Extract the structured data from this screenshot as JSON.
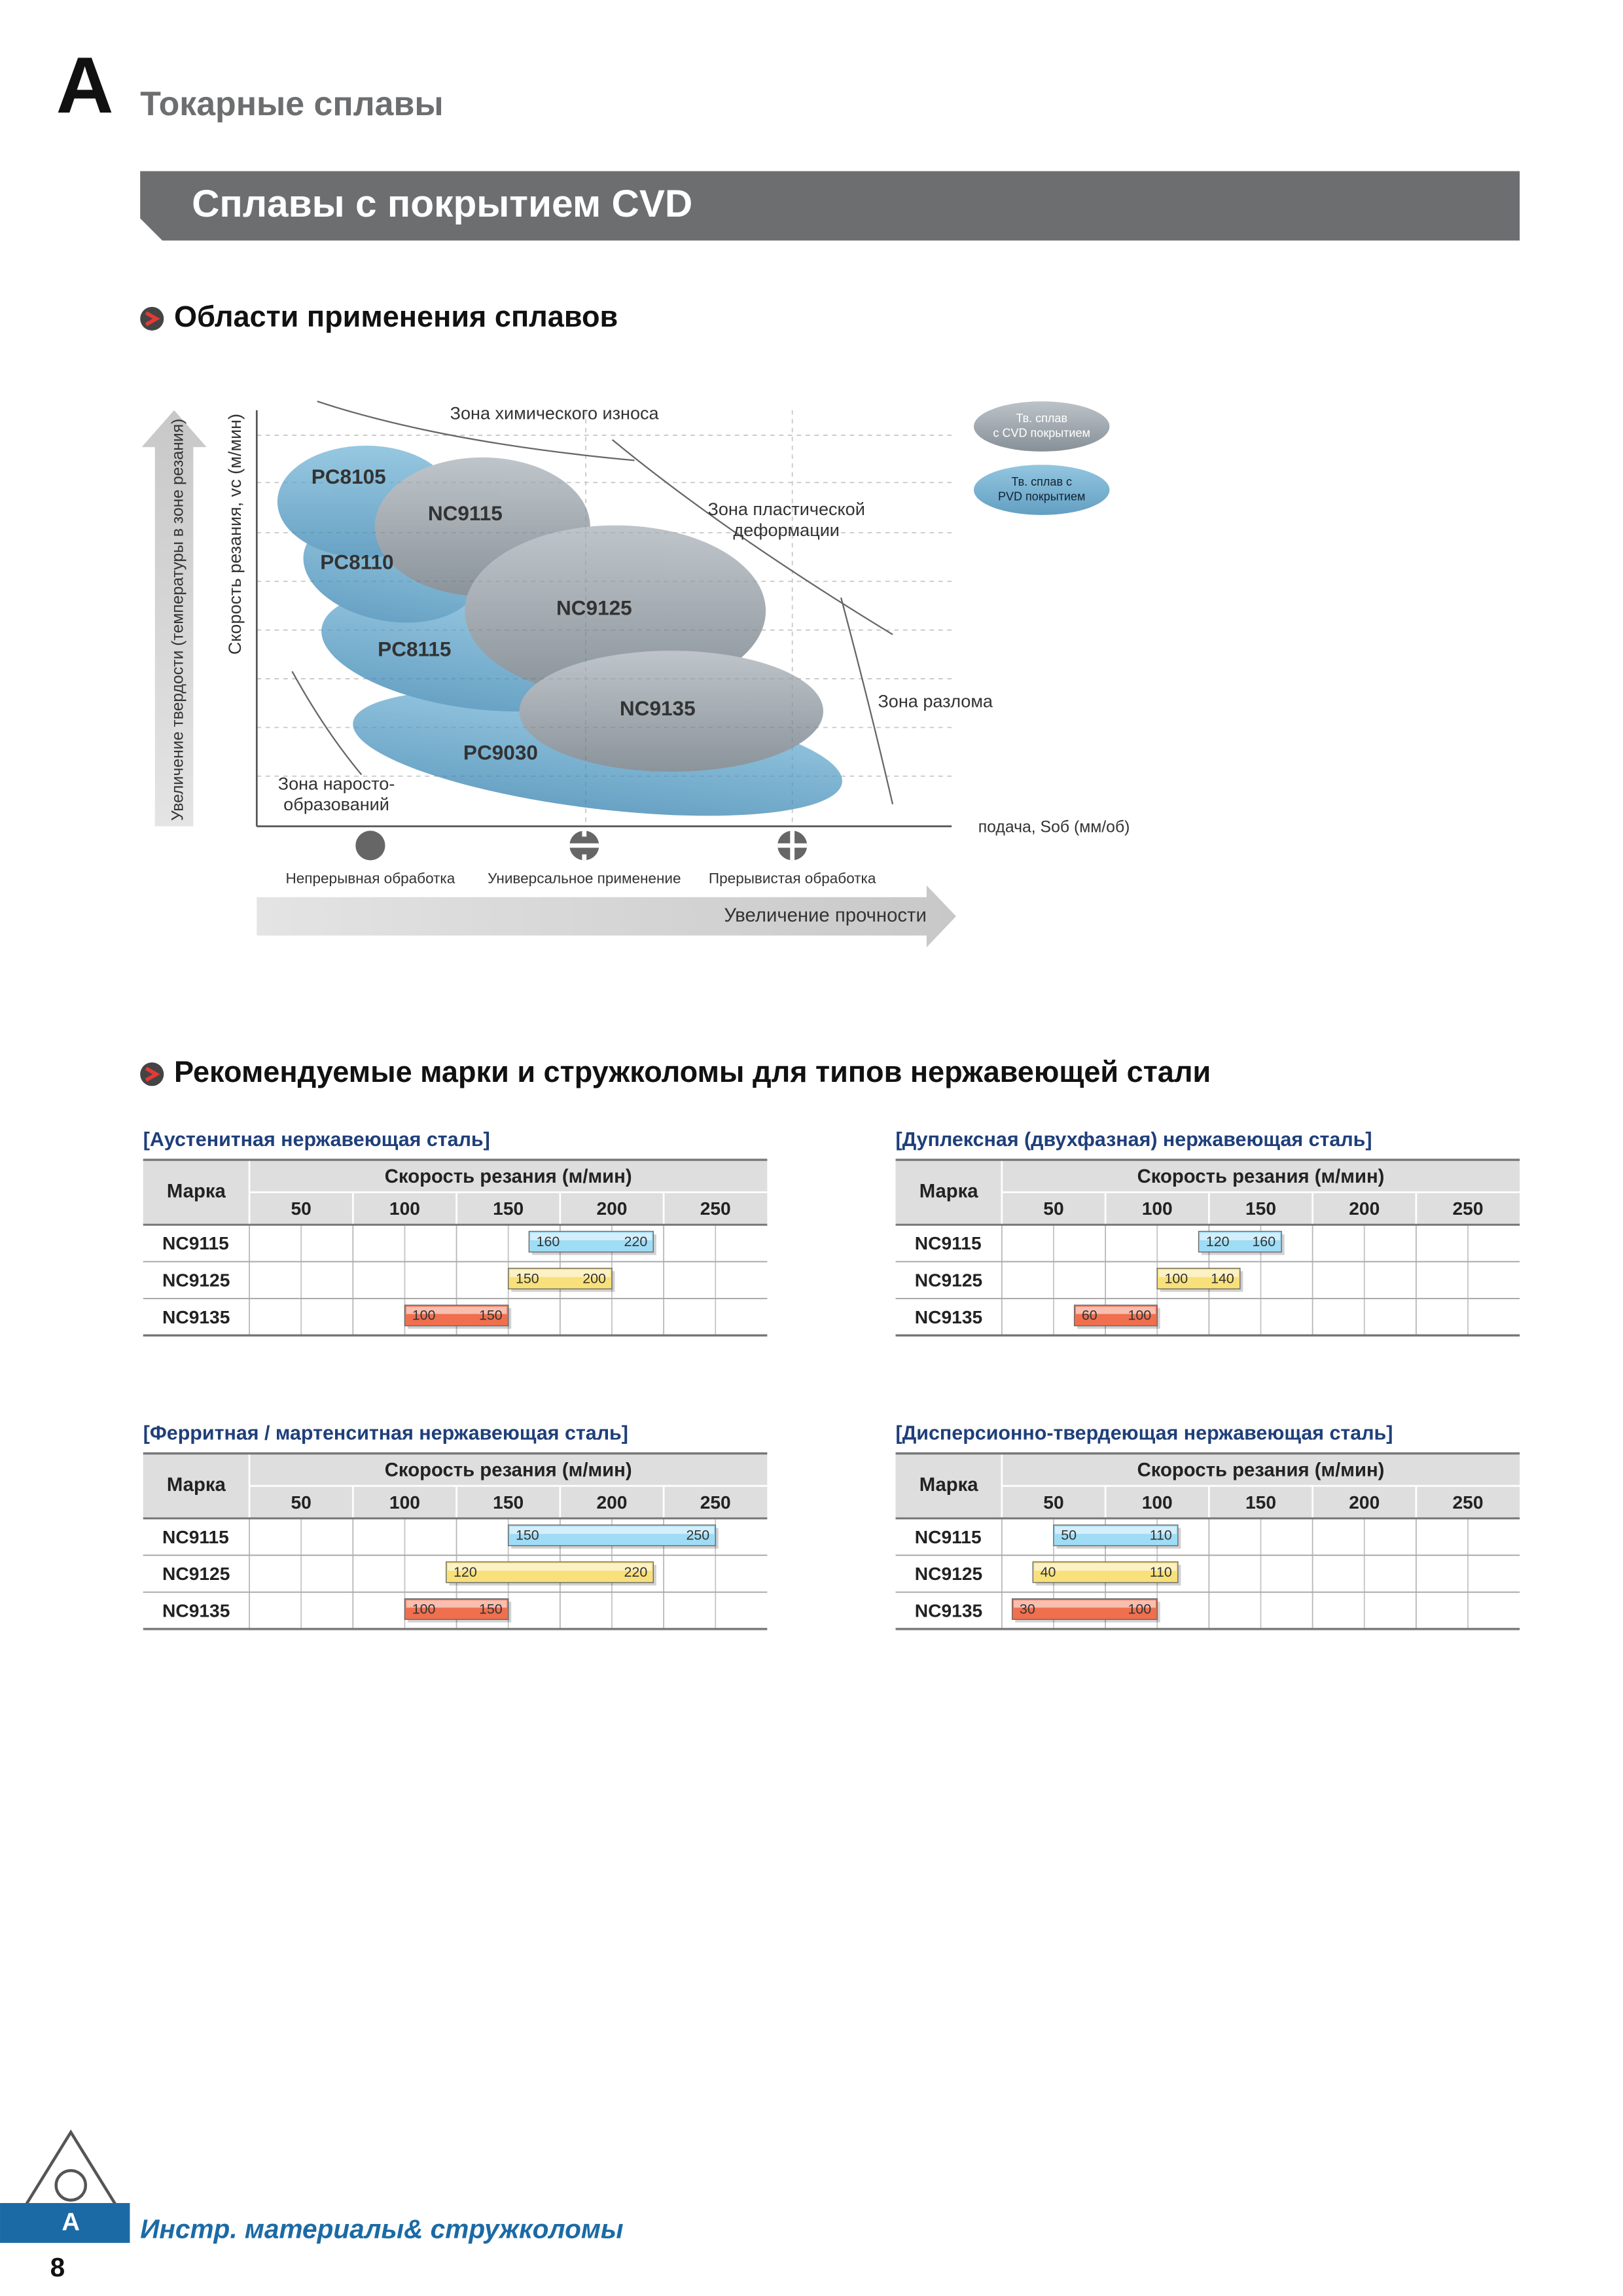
{
  "header": {
    "letter": "A",
    "title": "Токарные сплавы"
  },
  "banner": "Сплавы с покрытием CVD",
  "section1": {
    "title": "Области применения сплавов",
    "diagram": {
      "y_outer_label": "Увеличение твердости (температуры в зоне резания)",
      "y_label": "Скорость резания, vc (м/мин)",
      "x_label": "подача, Sоб (мм/об)",
      "zones": {
        "chemical": "Зона химического износа",
        "plastic": [
          "Зона пластической",
          "деформации"
        ],
        "fracture": "Зона разлома",
        "built_up": [
          "Зона наросто-",
          "образований"
        ]
      },
      "grades": [
        "PC8105",
        "NC9115",
        "PC8110",
        "NC9125",
        "PC8115",
        "NC9135",
        "PC9030"
      ],
      "legend": {
        "cvd": [
          "Тв. сплав",
          "с CVD покрытием"
        ],
        "pvd": [
          "Тв. сплав с",
          "PVD покрытием"
        ]
      },
      "modes": [
        "Непрерывная обработка",
        "Универсальное применение",
        "Прерывистая обработка"
      ],
      "arrow_label": "Увеличение прочности"
    }
  },
  "section2": {
    "title": "Рекомендуемые марки и стружколомы для типов нержавеющей стали",
    "tables": [
      {
        "title": "[Аустенитная нержавеющая сталь]",
        "grade_header": "Марка",
        "speed_header": "Скорость резания (м/мин)",
        "columns": [
          50,
          100,
          150,
          200,
          250
        ],
        "rows": [
          {
            "grade": "NC9115",
            "range": [
              160,
              220
            ],
            "color": "#9fdcf5"
          },
          {
            "grade": "NC9125",
            "range": [
              150,
              200
            ],
            "color": "#f8e07a"
          },
          {
            "grade": "NC9135",
            "range": [
              100,
              150
            ],
            "color": "#ef6f4f"
          }
        ]
      },
      {
        "title": "[Дуплексная (двухфазная) нержавеющая сталь]",
        "grade_header": "Марка",
        "speed_header": "Скорость резания (м/мин)",
        "columns": [
          50,
          100,
          150,
          200,
          250
        ],
        "rows": [
          {
            "grade": "NC9115",
            "range": [
              120,
              160
            ],
            "color": "#9fdcf5"
          },
          {
            "grade": "NC9125",
            "range": [
              100,
              140
            ],
            "color": "#f8e07a"
          },
          {
            "grade": "NC9135",
            "range": [
              60,
              100
            ],
            "color": "#ef6f4f"
          }
        ]
      },
      {
        "title": "[Ферритная / мартенситная нержавеющая сталь]",
        "grade_header": "Марка",
        "speed_header": "Скорость резания (м/мин)",
        "columns": [
          50,
          100,
          150,
          200,
          250
        ],
        "rows": [
          {
            "grade": "NC9115",
            "range": [
              150,
              250
            ],
            "color": "#9fdcf5"
          },
          {
            "grade": "NC9125",
            "range": [
              120,
              220
            ],
            "color": "#f8e07a"
          },
          {
            "grade": "NC9135",
            "range": [
              100,
              150
            ],
            "color": "#ef6f4f"
          }
        ]
      },
      {
        "title": "[Дисперсионно-твердеющая нержавеющая сталь]",
        "grade_header": "Марка",
        "speed_header": "Скорость резания (м/мин)",
        "columns": [
          50,
          100,
          150,
          200,
          250
        ],
        "rows": [
          {
            "grade": "NC9115",
            "range": [
              50,
              110
            ],
            "color": "#9fdcf5"
          },
          {
            "grade": "NC9125",
            "range": [
              40,
              110
            ],
            "color": "#f8e07a"
          },
          {
            "grade": "NC9135",
            "range": [
              30,
              100
            ],
            "color": "#ef6f4f"
          }
        ]
      }
    ]
  },
  "footer": {
    "letter": "A",
    "title": "Инстр. материалы& стружколомы",
    "page": "8"
  }
}
